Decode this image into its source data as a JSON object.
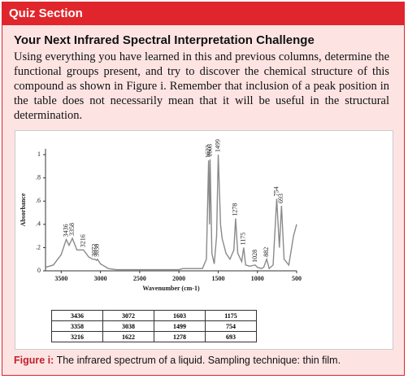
{
  "header": {
    "title": "Quiz Section"
  },
  "challenge": {
    "title": "Your Next Infrared Spectral Interpretation Challenge",
    "body": "Using everything you have learned in this and previous columns, determine the functional groups present, and try to discover the chemical structure of this compound as shown in Figure i. Remember that inclusion of a peak position in the table does not necessarily mean that it will be useful in the structural determination."
  },
  "chart_data": {
    "type": "line",
    "xlabel": "Wavenumber (cm-1)",
    "ylabel": "Absorbance",
    "color": "#8a8a8a",
    "x": [
      3700,
      3600,
      3500,
      3436,
      3400,
      3358,
      3300,
      3216,
      3150,
      3100,
      3072,
      3050,
      3038,
      3000,
      2950,
      2900,
      2800,
      2500,
      2200,
      2000,
      1950,
      1800,
      1700,
      1650,
      1622,
      1610,
      1603,
      1580,
      1550,
      1520,
      1499,
      1470,
      1450,
      1400,
      1350,
      1300,
      1278,
      1250,
      1200,
      1175,
      1150,
      1100,
      1028,
      1000,
      950,
      920,
      882,
      850,
      800,
      754,
      720,
      693,
      660,
      600,
      540,
      500
    ],
    "values": [
      0.03,
      0.05,
      0.14,
      0.27,
      0.22,
      0.28,
      0.18,
      0.18,
      0.12,
      0.1,
      0.1,
      0.09,
      0.1,
      0.06,
      0.04,
      0.02,
      0.01,
      0.01,
      0.01,
      0.01,
      0.02,
      0.02,
      0.02,
      0.1,
      0.95,
      0.4,
      0.96,
      0.15,
      0.06,
      0.3,
      1.0,
      0.4,
      0.28,
      0.15,
      0.1,
      0.18,
      0.45,
      0.15,
      0.08,
      0.2,
      0.05,
      0.04,
      0.05,
      0.03,
      0.02,
      0.03,
      0.1,
      0.02,
      0.05,
      0.62,
      0.2,
      0.56,
      0.1,
      0.05,
      0.3,
      0.4
    ],
    "xlim": [
      3700,
      500
    ],
    "ylim": [
      0,
      1.05
    ],
    "xticks": [
      3500,
      3000,
      2500,
      2000,
      1500,
      1000,
      500
    ],
    "yticks": [
      0,
      {
        "value": 0.2,
        "label": ".2"
      },
      {
        "value": 0.4,
        "label": ".4"
      },
      {
        "value": 0.6,
        "label": ".6"
      },
      {
        "value": 0.8,
        "label": ".8"
      },
      1
    ],
    "annotations": [
      3436,
      3358,
      3216,
      3072,
      3038,
      1622,
      1603,
      1499,
      1278,
      1175,
      1028,
      882,
      754,
      693
    ]
  },
  "table": {
    "rows": [
      [
        3436,
        3072,
        1603,
        1175
      ],
      [
        3358,
        3038,
        1499,
        754
      ],
      [
        3216,
        1622,
        1278,
        693
      ]
    ]
  },
  "caption": {
    "label": "Figure i:",
    "text": "The infrared spectrum of a liquid. Sampling technique: thin film."
  }
}
